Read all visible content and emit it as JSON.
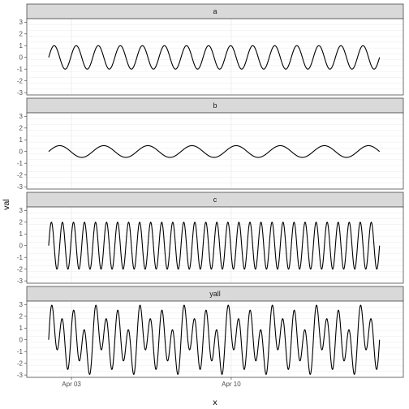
{
  "chart_data": {
    "type": "line",
    "facet_layout": "vertical",
    "xlabel": "x",
    "ylabel": "val",
    "ylim": [
      -3.2,
      3.3
    ],
    "y_ticks": [
      -3,
      -2,
      -1,
      0,
      1,
      2,
      3
    ],
    "x_range": [
      "2024-04-01T01:00",
      "2024-04-17T13:00"
    ],
    "x_ticks": [
      {
        "label": "Apr 03",
        "at": "2024-04-03T00:00"
      },
      {
        "label": "Apr 10",
        "at": "2024-04-10T00:00"
      }
    ],
    "line_start": "2024-04-02T00:00",
    "line_end": "2024-04-16T12:00",
    "grid": true,
    "panel_fill": "#ffffff",
    "strip_fill": "#d9d9d9",
    "grid_color": "#ebebeb",
    "line_color": "#000000",
    "facets": [
      {
        "label": "a",
        "components": [
          {
            "amplitude": 1.0,
            "cycles": 15
          }
        ]
      },
      {
        "label": "b",
        "components": [
          {
            "amplitude": 0.5,
            "cycles": 7.5
          }
        ]
      },
      {
        "label": "c",
        "components": [
          {
            "amplitude": 2.0,
            "cycles": 30
          }
        ]
      },
      {
        "label": "yall",
        "components": [
          {
            "amplitude": 1.0,
            "cycles": 15
          },
          {
            "amplitude": 0.5,
            "cycles": 7.5
          },
          {
            "amplitude": 2.0,
            "cycles": 30
          }
        ]
      }
    ]
  }
}
